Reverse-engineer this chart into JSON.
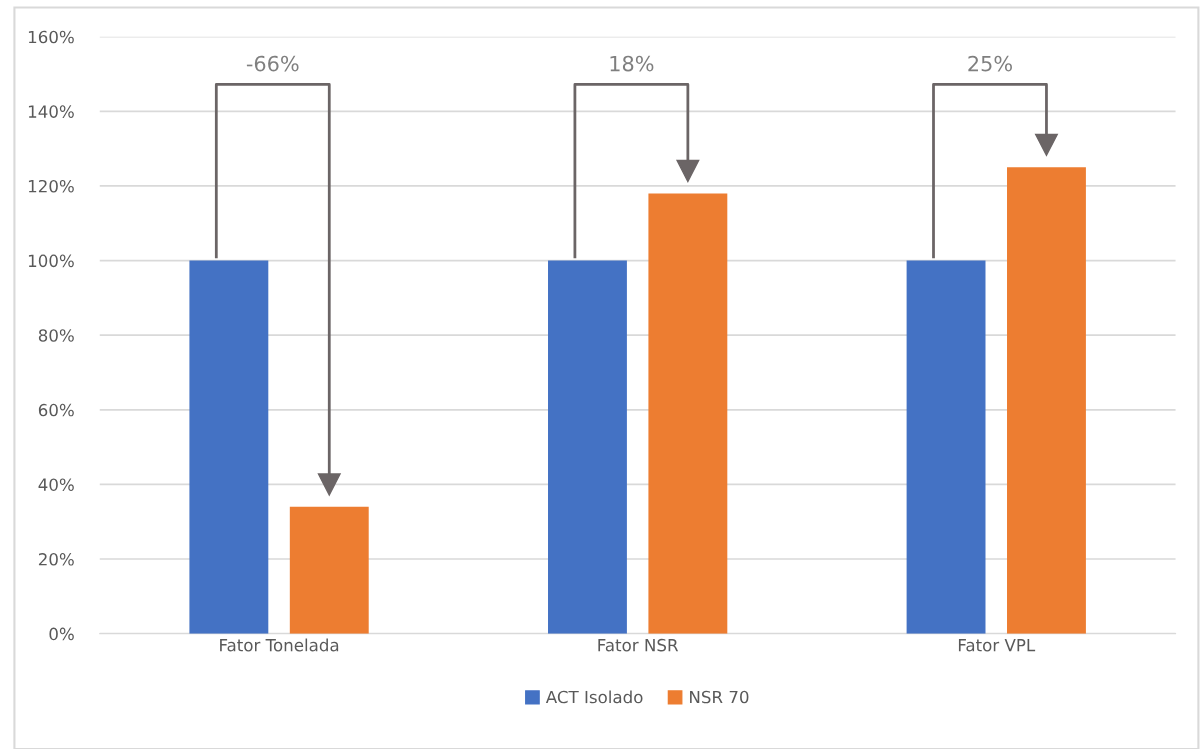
{
  "chart_data": {
    "type": "bar",
    "categories": [
      "Fator Tonelada",
      "Fator NSR",
      "Fator VPL"
    ],
    "series": [
      {
        "name": "ACT Isolado",
        "color": "#4472c4",
        "values": [
          100,
          100,
          100
        ]
      },
      {
        "name": "NSR 70",
        "color": "#ed7d31",
        "values": [
          34,
          118,
          125
        ]
      }
    ],
    "ylim": [
      0,
      160
    ],
    "yticks": [
      {
        "value": 0,
        "label": "0%"
      },
      {
        "value": 20,
        "label": "20%"
      },
      {
        "value": 40,
        "label": "40%"
      },
      {
        "value": 60,
        "label": "60%"
      },
      {
        "value": 80,
        "label": "80%"
      },
      {
        "value": 100,
        "label": "100%"
      },
      {
        "value": 120,
        "label": "120%"
      },
      {
        "value": 140,
        "label": "140%"
      },
      {
        "value": 160,
        "label": "160%"
      }
    ],
    "annotations": [
      "-66%",
      "18%",
      "25%"
    ],
    "grid": "y",
    "legend": "bottom"
  }
}
